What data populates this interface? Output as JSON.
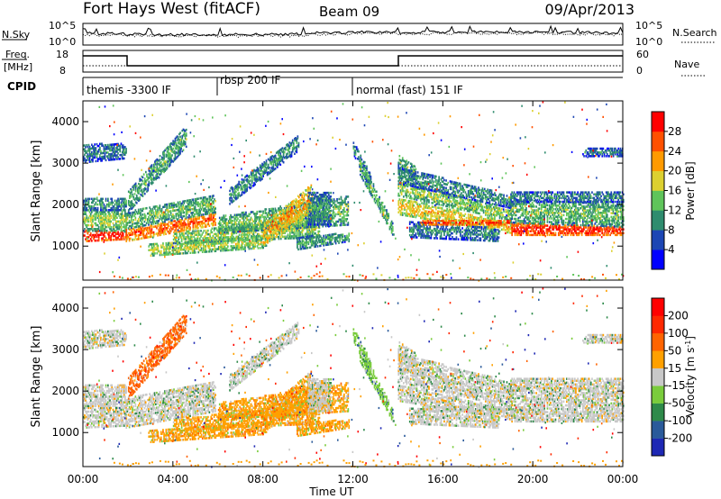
{
  "header": {
    "radar": "Fort Hays West (fitACF)",
    "beam": "Beam 09",
    "date": "09/Apr/2013"
  },
  "top_panels": {
    "noise": {
      "label_left": "N.Sky",
      "label_right": "N.Search",
      "ticks_left": [
        "10^5",
        "10^0"
      ],
      "ticks_right": [
        "10^5",
        "10^0"
      ]
    },
    "freq": {
      "label_left_1": "Freq.",
      "label_left_2": "[MHz]",
      "label_right": "Nave",
      "ticks_left": [
        "18",
        "8"
      ],
      "ticks_right": [
        "60",
        "0"
      ]
    },
    "cpid": {
      "label": "CPID",
      "segments": [
        {
          "text": "themis -3300 IF",
          "start_hour": 0
        },
        {
          "text": "rbsp 200 IF",
          "start_hour": 6
        },
        {
          "text": "normal (fast) 151 IF",
          "start_hour": 12
        }
      ]
    }
  },
  "chart_data": [
    {
      "type": "heatmap",
      "title": "Power",
      "xlabel": "",
      "ylabel": "Slant Range [km]",
      "x_range_hours": [
        0,
        24
      ],
      "y_range_km": [
        180,
        4500
      ],
      "y_ticks": [
        1000,
        2000,
        3000,
        4000
      ],
      "colorbar": {
        "label": "Power [dB]",
        "ticks": [
          "4",
          "8",
          "12",
          "16",
          "20",
          "24",
          "28"
        ],
        "range": [
          0,
          32
        ],
        "colors": [
          "#0000ff",
          "#1c46b4",
          "#2f8c6e",
          "#5fc45a",
          "#dcd030",
          "#ff9a00",
          "#ff5000",
          "#ff0000"
        ]
      }
    },
    {
      "type": "heatmap",
      "title": "Velocity",
      "xlabel": "Time UT",
      "ylabel": "Slant Range [km]",
      "x_range_hours": [
        0,
        24
      ],
      "y_range_km": [
        180,
        4500
      ],
      "y_ticks": [
        1000,
        2000,
        3000,
        4000
      ],
      "x_ticks": [
        "00:00",
        "04:00",
        "08:00",
        "12:00",
        "16:00",
        "20:00",
        "00:00"
      ],
      "colorbar": {
        "label": "Velocity [m s",
        "label_sup": "-1",
        "label_end": "]",
        "ticks": [
          "200",
          "100",
          "50",
          "15",
          "-15",
          "-50",
          "-100",
          "-200"
        ],
        "colors": [
          "#1e28b4",
          "#2a5a9a",
          "#2e8a4a",
          "#7acc3c",
          "#c8c8c8",
          "#ffa000",
          "#ff6400",
          "#ff2800",
          "#ff0000"
        ]
      }
    }
  ],
  "colors": {
    "frame": "#000000",
    "background": "#ffffff"
  }
}
